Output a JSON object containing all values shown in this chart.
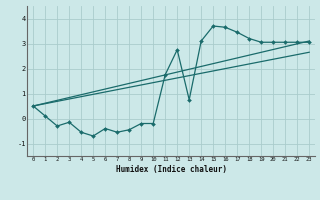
{
  "xlabel": "Humidex (Indice chaleur)",
  "bg_color": "#cce8e8",
  "grid_color": "#aacccc",
  "line_color": "#1a6b6b",
  "xlim": [
    -0.5,
    23.5
  ],
  "ylim": [
    -1.5,
    4.5
  ],
  "yticks": [
    -1,
    0,
    1,
    2,
    3,
    4
  ],
  "xticks": [
    0,
    1,
    2,
    3,
    4,
    5,
    6,
    7,
    8,
    9,
    10,
    11,
    12,
    13,
    14,
    15,
    16,
    17,
    18,
    19,
    20,
    21,
    22,
    23
  ],
  "line1_x": [
    0,
    1,
    2,
    3,
    4,
    5,
    6,
    7,
    8,
    9,
    10,
    11,
    12,
    13,
    14,
    15,
    16,
    17,
    18,
    19,
    20,
    21,
    22,
    23
  ],
  "line1_y": [
    0.5,
    0.1,
    -0.3,
    -0.15,
    -0.55,
    -0.7,
    -0.4,
    -0.55,
    -0.45,
    -0.2,
    -0.2,
    1.75,
    2.75,
    0.75,
    3.1,
    3.7,
    3.65,
    3.45,
    3.2,
    3.05,
    3.05,
    3.05,
    3.05,
    3.05
  ],
  "line2_x": [
    0,
    23
  ],
  "line2_y": [
    0.5,
    2.65
  ],
  "line3_x": [
    0,
    23
  ],
  "line3_y": [
    0.5,
    3.1
  ],
  "markersize": 2.0
}
